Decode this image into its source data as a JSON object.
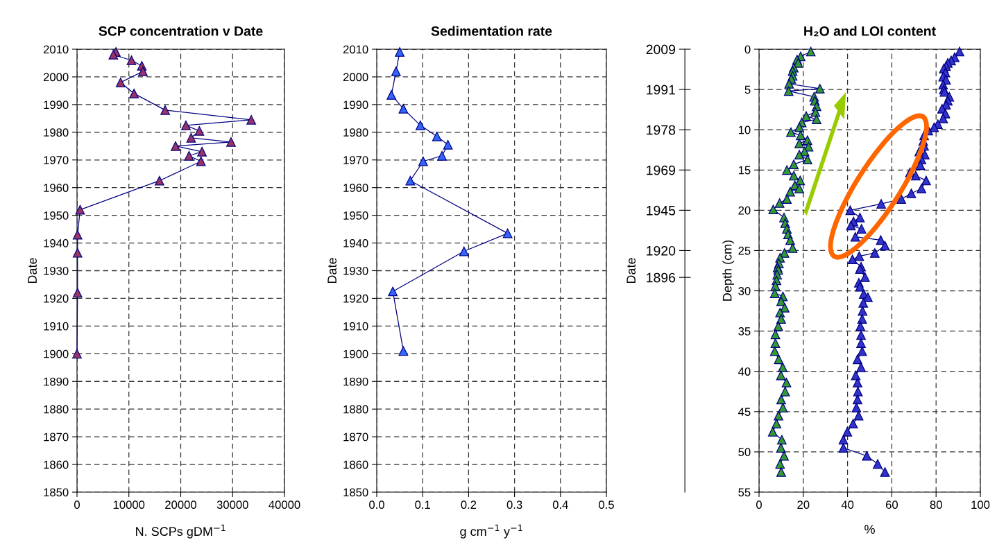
{
  "chart_data": [
    {
      "type": "line",
      "title": "SCP concentration v Date",
      "xlabel": "N. SCPs gDM$^{−1}$",
      "ylabel": "Date",
      "xlim": [
        0,
        40000
      ],
      "xticks": [
        0,
        10000,
        20000,
        30000,
        40000
      ],
      "ylim": [
        1850,
        2010
      ],
      "yticks": [
        1850,
        1860,
        1870,
        1880,
        1890,
        1900,
        1910,
        1920,
        1930,
        1940,
        1950,
        1960,
        1970,
        1980,
        1990,
        2000,
        2010
      ],
      "grid": true,
      "marker": "triangle",
      "line_style": "solid",
      "series": [
        {
          "color": "#993366",
          "x": [
            7500,
            7000,
            10500,
            12500,
            12700,
            8400,
            11000,
            17000,
            33600,
            21000,
            23600,
            22000,
            29700,
            19000,
            24100,
            21600,
            23900,
            15900,
            600,
            100,
            100,
            100,
            0
          ],
          "values": [
            2009,
            2008,
            2006,
            2004,
            2002,
            1998,
            1994,
            1988,
            1984.5,
            1982.5,
            1980.5,
            1978,
            1976.5,
            1975,
            1973,
            1971.5,
            1969.5,
            1962.5,
            1952,
            1943,
            1936.5,
            1922,
            1900
          ]
        }
      ]
    },
    {
      "type": "line",
      "title": "Sedimentation rate",
      "xlabel": "g cm$^{−1}$ y$^{−1}$",
      "ylabel": "Date",
      "xlim": [
        0,
        0.5
      ],
      "xticks": [
        {
          "value": 0,
          "label": "0.0"
        },
        0.1,
        0.2,
        0.3,
        0.4,
        0.5
      ],
      "ylim": [
        1850,
        2010
      ],
      "yticks": [
        1850,
        1860,
        1870,
        1880,
        1890,
        1900,
        1910,
        1920,
        1930,
        1940,
        1950,
        1960,
        1970,
        1980,
        1990,
        2000,
        2010
      ],
      "grid": true,
      "marker": "triangle",
      "line_style": "solid",
      "series": [
        {
          "color": "#3366ff",
          "x": [
            0.05,
            0.042,
            0.032,
            0.058,
            0.095,
            0.131,
            0.155,
            0.142,
            0.101,
            0.073,
            0.285,
            0.19,
            0.035,
            0.058
          ],
          "values": [
            2009,
            2002,
            1993.5,
            1988.5,
            1982.5,
            1978.5,
            1975.5,
            1971.5,
            1969.5,
            1962.5,
            1943.5,
            1937,
            1922.5,
            1901
          ]
        }
      ]
    },
    {
      "type": "line",
      "title": "H₂O and LOI content",
      "xlabel": "%",
      "ylabel": "Depth (cm)",
      "y2label": "Date",
      "xlim": [
        0,
        100
      ],
      "xticks": [
        0,
        20,
        40,
        60,
        80,
        100
      ],
      "ylim": [
        55,
        0
      ],
      "yticks": [
        0,
        5,
        10,
        15,
        20,
        25,
        30,
        35,
        40,
        45,
        50,
        55
      ],
      "y2_categories": [
        "2009",
        null,
        null,
        "1991",
        null,
        null,
        "1978",
        null,
        null,
        "1969",
        null,
        null,
        "1945",
        null,
        null,
        "1920",
        null,
        "1896",
        null,
        null,
        null,
        null,
        null,
        null,
        null,
        null,
        null,
        null,
        null,
        null,
        null,
        null,
        null,
        null
      ],
      "grid": true,
      "marker": "triangle",
      "line_style": "solid",
      "series": [
        {
          "color": "#3333cc",
          "x": [
            90.6,
            88.4,
            86.8,
            85.3,
            84.5,
            83.5,
            84.2,
            83.2,
            84.5,
            83.2,
            83.5,
            83.8,
            86,
            85.3,
            84.5,
            82.7,
            84.2,
            83.2,
            80.8,
            79.1,
            76.5,
            74.6,
            74.2,
            74.6,
            72.4,
            74.9,
            73.4,
            72.9,
            68.2,
            70.8,
            75.5,
            73.4,
            68.8,
            64.3,
            55.2,
            41.2,
            45.6,
            42.7,
            41.5,
            46.3,
            43.5,
            55,
            56.9,
            52.3,
            45.3,
            42.2,
            46.1,
            45.6,
            47.9,
            45.1,
            45.6,
            47.3,
            49.2,
            47.1,
            46.8,
            46.6,
            45.8,
            46.1,
            46.1,
            46.6,
            44.5,
            46.1,
            43.7,
            44.5,
            44.7,
            44.5,
            44,
            45,
            42.5,
            39.9,
            38.1,
            38.1,
            48.7,
            53.6,
            56.9
          ],
          "values": [
            0.3,
            1,
            1.4,
            1.7,
            2.1,
            2.4,
            2.9,
            3.4,
            3.8,
            4.4,
            5,
            5.3,
            5.9,
            6.4,
            6.9,
            7.4,
            8,
            8.6,
            9.3,
            9.7,
            10.1,
            10.7,
            11.4,
            12,
            12.7,
            13.1,
            13.7,
            14.4,
            15.3,
            15.7,
            16.3,
            17.3,
            17.9,
            18.6,
            19.2,
            20,
            20.9,
            21.4,
            21.9,
            22.3,
            23.3,
            23.7,
            24.4,
            25.3,
            25.7,
            26.1,
            27,
            27.3,
            28.3,
            29,
            29.5,
            30.4,
            30.8,
            31.5,
            32.5,
            33.5,
            34.4,
            35.5,
            36.5,
            37.5,
            38.5,
            39.5,
            40.5,
            41.4,
            42.5,
            43.5,
            44.5,
            45.5,
            46.5,
            47.5,
            48.5,
            49.5,
            50.5,
            51.5,
            52.5
          ]
        },
        {
          "color": "#339933",
          "x": [
            23.4,
            18.8,
            17.2,
            17.7,
            15.7,
            15.2,
            15.2,
            14.6,
            13.6,
            27.5,
            13.4,
            24.9,
            25.2,
            26,
            25.5,
            21.3,
            26,
            19.3,
            18.2,
            14.4,
            18.8,
            21.9,
            18.2,
            22.4,
            20.6,
            18.2,
            21.9,
            15.7,
            12.6,
            15.7,
            18.6,
            16.2,
            18.2,
            14.1,
            12.6,
            9.3,
            6.4,
            11.3,
            11.8,
            12.6,
            13.1,
            14.1,
            15.2,
            11.5,
            9.5,
            9,
            8.4,
            8.7,
            8.2,
            7.9,
            7.4,
            7.1,
            10.8,
            10,
            11.6,
            9.5,
            10,
            8.7,
            7.4,
            7.4,
            7.1,
            8.9,
            10.7,
            9.9,
            12.4,
            11.8,
            10,
            10.8,
            8.8,
            7.9,
            6.2,
            10.3,
            9.9,
            11.3,
            9.5,
            10
          ],
          "values": [
            0.3,
            0.9,
            1.3,
            1.7,
            2.3,
            2.7,
            3.3,
            3.7,
            4.3,
            4.9,
            5.2,
            5.9,
            6.4,
            7.1,
            7.8,
            8.3,
            8.7,
            9.1,
            9.7,
            10.3,
            10.7,
            11.3,
            11.7,
            12.1,
            12.7,
            13.1,
            13.7,
            14.3,
            15,
            15.7,
            16.3,
            16.9,
            17.3,
            17.7,
            18.6,
            19.1,
            19.9,
            20.9,
            21.6,
            22.3,
            23,
            23.7,
            24.7,
            25.3,
            25.9,
            26.6,
            27.1,
            27.4,
            28,
            28.7,
            29.4,
            30.3,
            30.7,
            31.3,
            32.1,
            32.7,
            33.5,
            34.4,
            35.4,
            36.5,
            37.5,
            38.5,
            39.5,
            40.5,
            41.4,
            42.5,
            43.5,
            44.5,
            45.5,
            46.5,
            47.5,
            48.5,
            49.5,
            50.5,
            51.5,
            52.5
          ]
        }
      ]
    }
  ]
}
